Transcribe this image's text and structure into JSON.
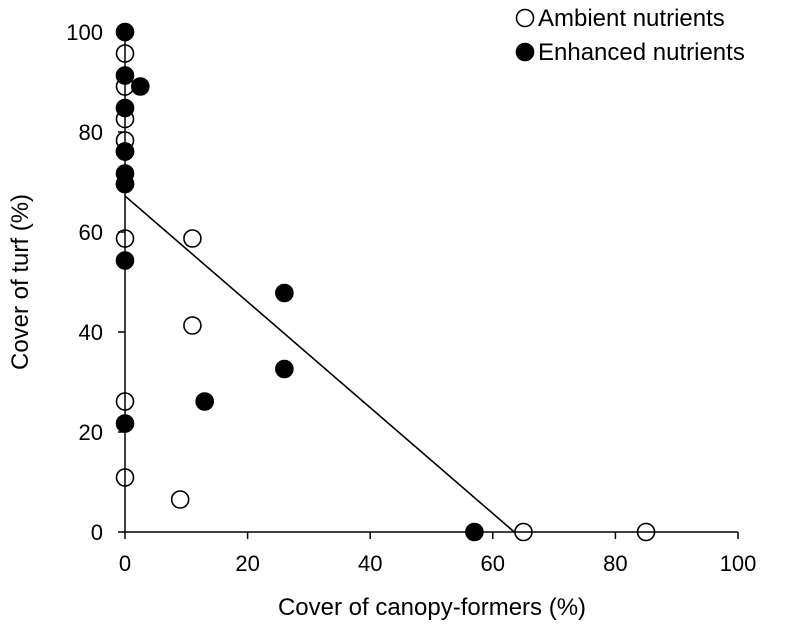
{
  "chart_data": {
    "type": "scatter",
    "xlabel": "Cover of canopy-formers  (%)",
    "ylabel": "Cover of turf (%)",
    "xlim": [
      0,
      100
    ],
    "ylim": [
      0,
      100
    ],
    "x_ticks": [
      "0",
      "20",
      "40",
      "60",
      "80",
      "100"
    ],
    "y_ticks": [
      "0",
      "20",
      "40",
      "60",
      "80",
      "100"
    ],
    "grid": false,
    "legend_position": "top-right",
    "series": [
      {
        "name": "Ambient nutrients",
        "marker": "open-circle",
        "points": [
          [
            0,
            95.7
          ],
          [
            0,
            89.1
          ],
          [
            0,
            82.6
          ],
          [
            0,
            78.3
          ],
          [
            0,
            76.1
          ],
          [
            0,
            69.6
          ],
          [
            0,
            58.7
          ],
          [
            0,
            26.1
          ],
          [
            0,
            10.9
          ],
          [
            11,
            58.7
          ],
          [
            11,
            41.3
          ],
          [
            9,
            6.5
          ],
          [
            65,
            0
          ],
          [
            85,
            0
          ]
        ]
      },
      {
        "name": "Enhanced nutrients",
        "marker": "filled-circle",
        "points": [
          [
            0,
            100
          ],
          [
            0,
            91.3
          ],
          [
            2.5,
            89.1
          ],
          [
            0,
            84.8
          ],
          [
            0,
            76.1
          ],
          [
            0,
            71.7
          ],
          [
            0,
            69.6
          ],
          [
            0,
            54.3
          ],
          [
            0,
            21.7
          ],
          [
            26,
            47.8
          ],
          [
            26,
            32.6
          ],
          [
            13,
            26.1
          ],
          [
            57,
            0
          ]
        ]
      }
    ],
    "trendline": {
      "x": [
        0,
        63.5
      ],
      "y": [
        67.2,
        0
      ]
    },
    "colors": {
      "axis": "#000000",
      "marker_fill": "#000000",
      "open_fill": "#ffffff"
    }
  }
}
